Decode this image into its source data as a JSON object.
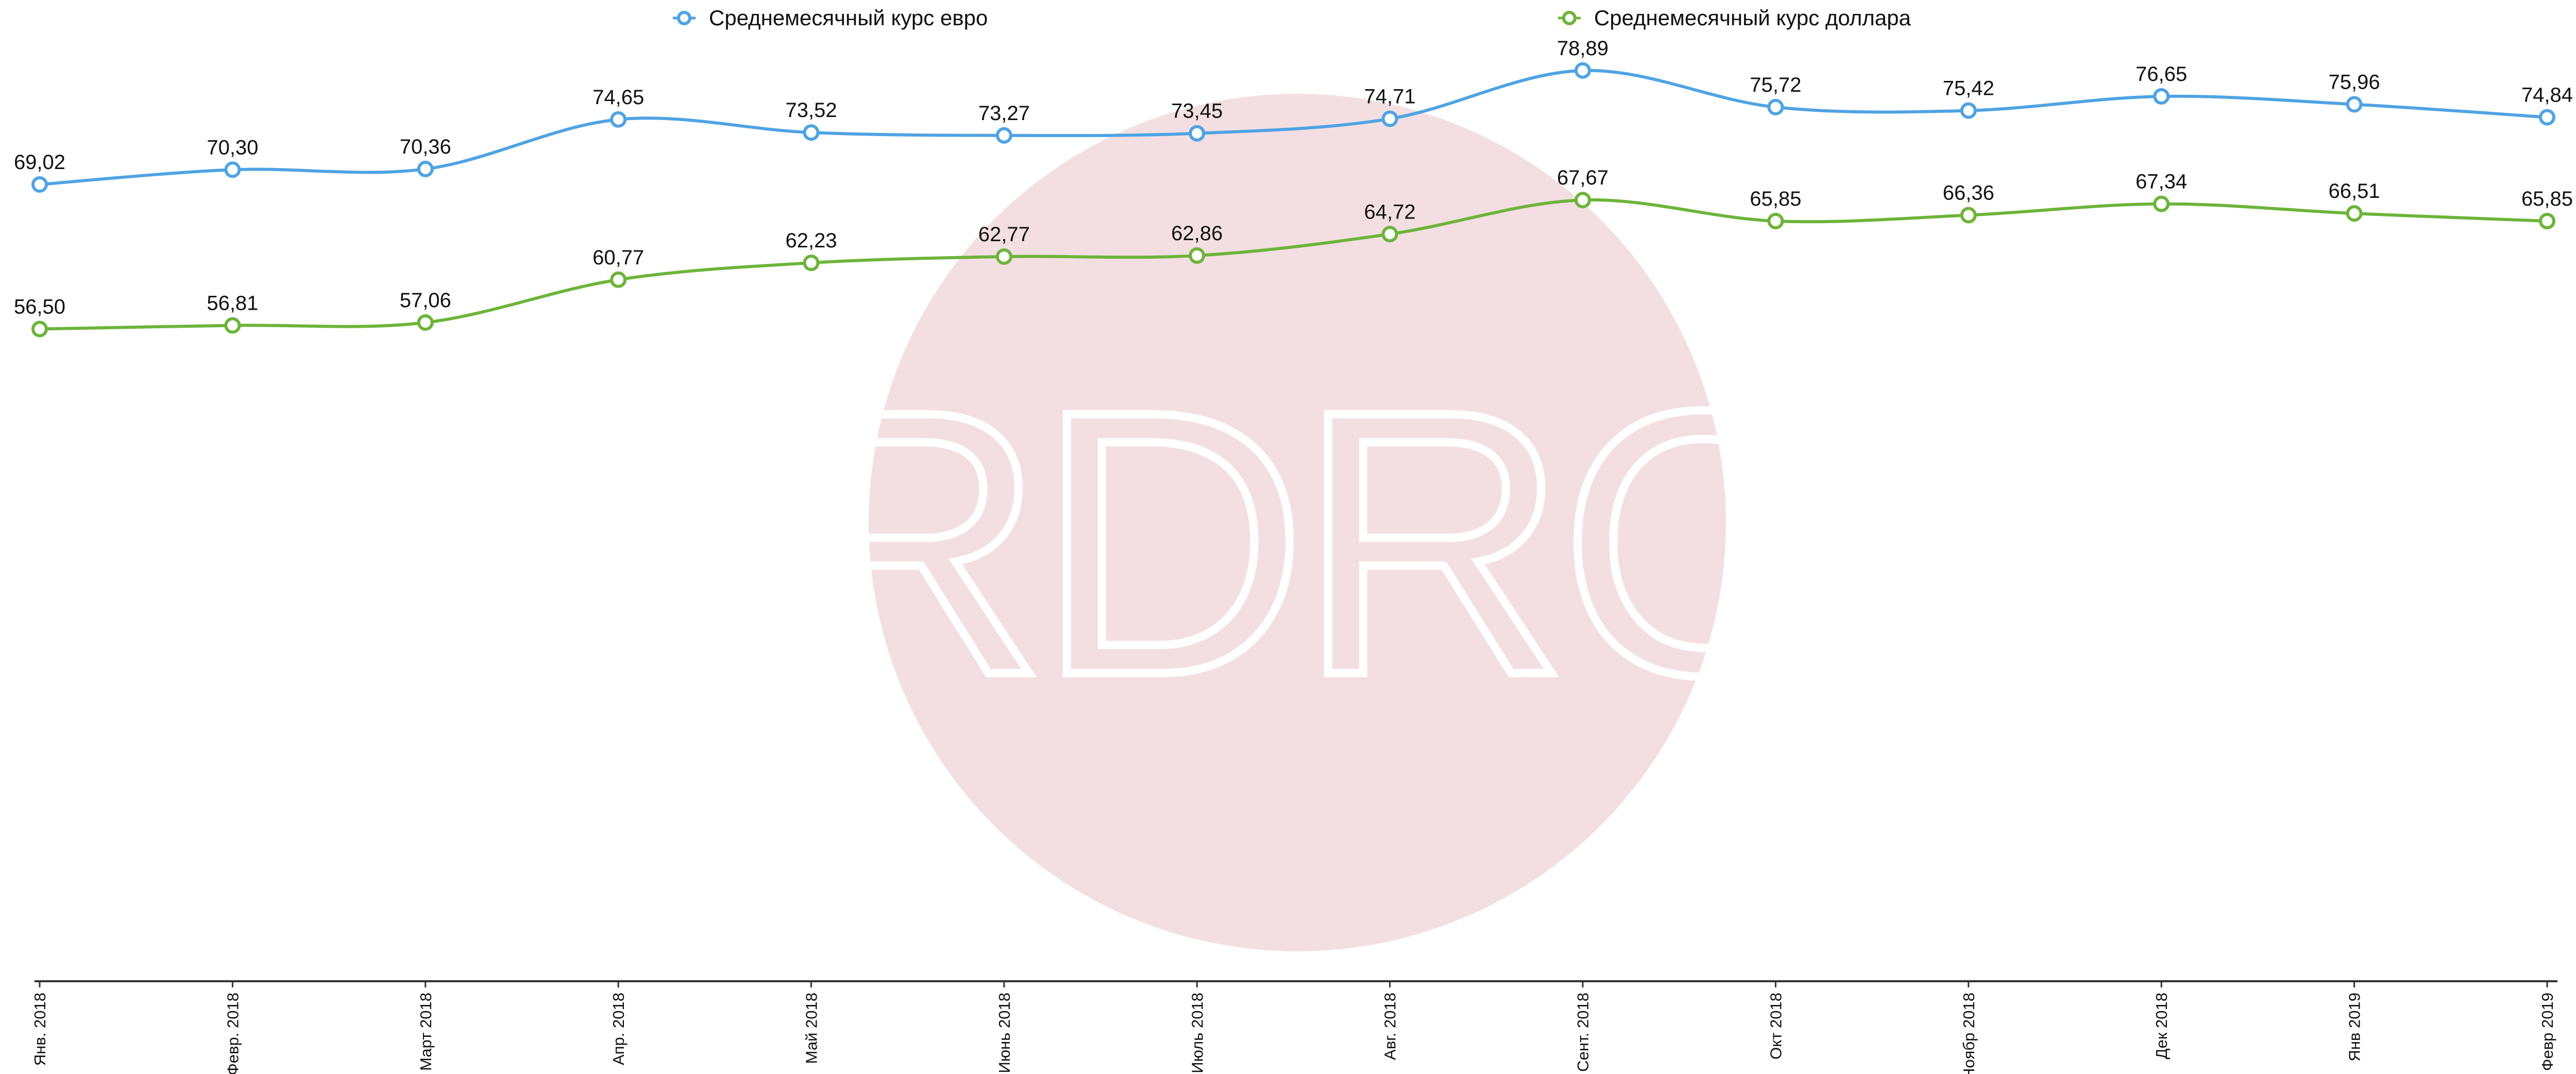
{
  "chart_data": {
    "type": "line",
    "watermark": "RDRC",
    "categories": [
      "Янв. 2018",
      "Февр. 2018",
      "Март 2018",
      "Апр. 2018",
      "Май 2018",
      "Июнь 2018",
      "Июль 2018",
      "Авг. 2018",
      "Сент. 2018",
      "Окт 2018",
      "Ноябр 2018",
      "Дек 2018",
      "Янв 2019",
      "Февр 2019"
    ],
    "series": [
      {
        "name": "Среднемесячный курс евро",
        "color": "#4fa3e3",
        "values": [
          69.02,
          70.3,
          70.36,
          74.65,
          73.52,
          73.27,
          73.45,
          74.71,
          78.89,
          75.72,
          75.42,
          76.65,
          75.96,
          74.84
        ],
        "value_labels": [
          "69,02",
          "70,30",
          "70,36",
          "74,65",
          "73,52",
          "73,27",
          "73,45",
          "74,71",
          "78,89",
          "75,72",
          "75,42",
          "76,65",
          "75,96",
          "74,84"
        ]
      },
      {
        "name": "Среднемесячный курс доллара",
        "color": "#6cb43a",
        "values": [
          56.5,
          56.81,
          57.06,
          60.77,
          62.23,
          62.77,
          62.86,
          64.72,
          67.67,
          65.85,
          66.36,
          67.34,
          66.51,
          65.85
        ],
        "value_labels": [
          "56,50",
          "56,81",
          "57,06",
          "60,77",
          "62,23",
          "62,77",
          "62,86",
          "64,72",
          "67,67",
          "65,85",
          "66,36",
          "67,34",
          "66,51",
          "65,85"
        ]
      }
    ],
    "ylim": [
      0,
      85
    ],
    "legend": "top"
  }
}
